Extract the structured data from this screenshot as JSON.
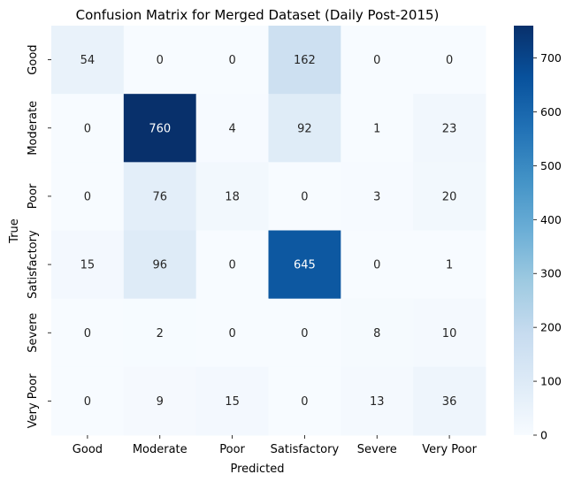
{
  "chart_data": {
    "type": "heatmap",
    "title": "Confusion Matrix for Merged Dataset (Daily Post-2015)",
    "xlabel": "Predicted",
    "ylabel": "True",
    "x_categories": [
      "Good",
      "Moderate",
      "Poor",
      "Satisfactory",
      "Severe",
      "Very Poor"
    ],
    "y_categories": [
      "Good",
      "Moderate",
      "Poor",
      "Satisfactory",
      "Severe",
      "Very Poor"
    ],
    "values": [
      [
        54,
        0,
        0,
        162,
        0,
        0
      ],
      [
        0,
        760,
        4,
        92,
        1,
        23
      ],
      [
        0,
        76,
        18,
        0,
        3,
        20
      ],
      [
        15,
        96,
        0,
        645,
        0,
        1
      ],
      [
        0,
        2,
        0,
        0,
        8,
        10
      ],
      [
        0,
        9,
        15,
        0,
        13,
        36
      ]
    ],
    "colorscale": "Blues",
    "vmin": 0,
    "vmax": 760,
    "colorbar_ticks": [
      0,
      100,
      200,
      300,
      400,
      500,
      600,
      700
    ],
    "colors": {
      "scale": [
        "#f7fbff",
        "#deebf7",
        "#c6dbef",
        "#9ecae1",
        "#6baed6",
        "#4292c6",
        "#2171b5",
        "#08519c",
        "#08306b"
      ],
      "text_dark": "#262626",
      "text_light": "#ffffff"
    }
  }
}
